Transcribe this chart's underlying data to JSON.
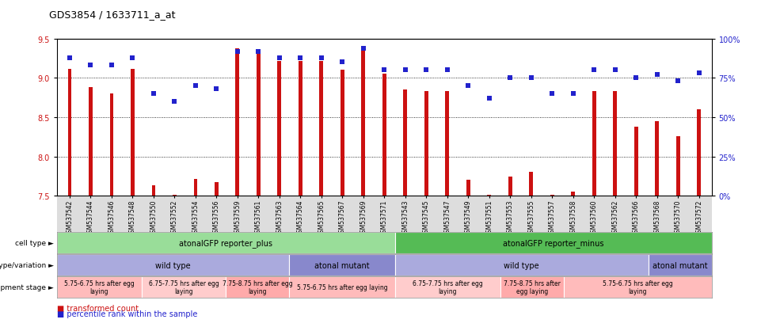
{
  "title": "GDS3854 / 1633711_a_at",
  "samples": [
    "GSM537542",
    "GSM537544",
    "GSM537546",
    "GSM537548",
    "GSM537550",
    "GSM537552",
    "GSM537554",
    "GSM537556",
    "GSM537559",
    "GSM537561",
    "GSM537563",
    "GSM537564",
    "GSM537565",
    "GSM537567",
    "GSM537569",
    "GSM537571",
    "GSM537543",
    "GSM537545",
    "GSM537547",
    "GSM537549",
    "GSM537551",
    "GSM537553",
    "GSM537555",
    "GSM537557",
    "GSM537558",
    "GSM537560",
    "GSM537562",
    "GSM537566",
    "GSM537568",
    "GSM537570",
    "GSM537572"
  ],
  "bar_values": [
    9.11,
    8.88,
    8.8,
    9.11,
    7.63,
    7.51,
    7.72,
    7.68,
    9.38,
    9.36,
    9.21,
    9.21,
    9.21,
    9.1,
    9.41,
    9.05,
    8.85,
    8.83,
    8.83,
    7.71,
    7.51,
    7.75,
    7.81,
    7.51,
    7.55,
    8.83,
    8.83,
    8.38,
    8.45,
    8.26,
    8.6
  ],
  "percentile_values": [
    88,
    83,
    83,
    88,
    65,
    60,
    70,
    68,
    92,
    92,
    88,
    88,
    88,
    85,
    94,
    80,
    80,
    80,
    80,
    70,
    62,
    75,
    75,
    65,
    65,
    80,
    80,
    75,
    77,
    73,
    78
  ],
  "ymin": 7.5,
  "ymax": 9.5,
  "yticks": [
    7.5,
    8.0,
    8.5,
    9.0,
    9.5
  ],
  "right_yticks": [
    0,
    25,
    50,
    75,
    100
  ],
  "bar_color": "#cc1111",
  "dot_color": "#2222cc",
  "cell_type_regions": [
    {
      "label": "atonalGFP reporter_plus",
      "start": 0,
      "end": 15,
      "color": "#99dd99"
    },
    {
      "label": "atonalGFP reporter_minus",
      "start": 16,
      "end": 30,
      "color": "#55bb55"
    }
  ],
  "genotype_regions": [
    {
      "label": "wild type",
      "start": 0,
      "end": 10,
      "color": "#aaaadd"
    },
    {
      "label": "atonal mutant",
      "start": 11,
      "end": 15,
      "color": "#8888cc"
    },
    {
      "label": "wild type",
      "start": 16,
      "end": 27,
      "color": "#aaaadd"
    },
    {
      "label": "atonal mutant",
      "start": 28,
      "end": 30,
      "color": "#8888cc"
    }
  ],
  "dev_stage_regions": [
    {
      "label": "5.75-6.75 hrs after egg\nlaying",
      "start": 0,
      "end": 3,
      "color": "#ffbbbb"
    },
    {
      "label": "6.75-7.75 hrs after egg\nlaying",
      "start": 4,
      "end": 7,
      "color": "#ffcccc"
    },
    {
      "label": "7.75-8.75 hrs after egg\nlaying",
      "start": 8,
      "end": 10,
      "color": "#ffaaaa"
    },
    {
      "label": "5.75-6.75 hrs after egg laying",
      "start": 11,
      "end": 15,
      "color": "#ffbbbb"
    },
    {
      "label": "6.75-7.75 hrs after egg\nlaying",
      "start": 16,
      "end": 20,
      "color": "#ffcccc"
    },
    {
      "label": "7.75-8.75 hrs after\negg laying",
      "start": 21,
      "end": 23,
      "color": "#ffaaaa"
    },
    {
      "label": "5.75-6.75 hrs after egg\nlaying",
      "start": 24,
      "end": 30,
      "color": "#ffbbbb"
    }
  ],
  "row_labels": [
    "cell type",
    "genotype/variation",
    "development stage"
  ]
}
